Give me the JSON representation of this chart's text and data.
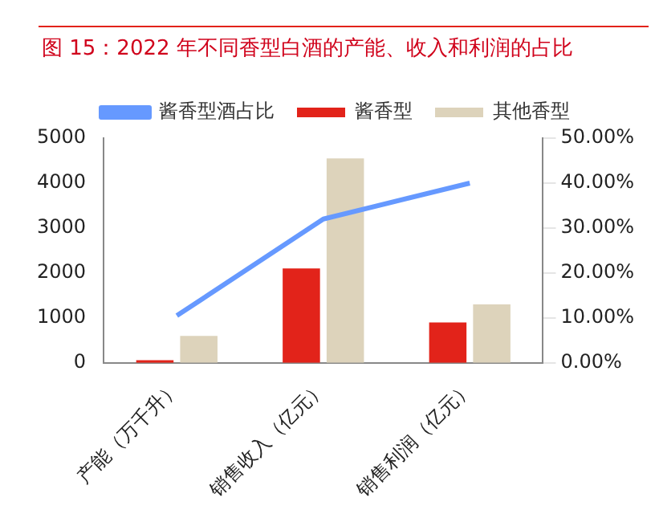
{
  "chart_data": {
    "type": "bar",
    "title": "图 15：2022 年不同香型白酒的产能、收入和利润的占比",
    "categories": [
      "产能（万千升）",
      "销售收入（亿元）",
      "销售利润（亿元）"
    ],
    "series": [
      {
        "name": "酱香型",
        "color": "#e2231a",
        "values": [
          60,
          2100,
          900
        ]
      },
      {
        "name": "其他香型",
        "color": "#ddd3bb",
        "values": [
          600,
          4550,
          1300
        ]
      },
      {
        "name": "酱香型酒占比",
        "type": "line",
        "axis": "y2",
        "color": "#6699ff",
        "values": [
          10.5,
          32,
          40
        ]
      }
    ],
    "ylim": [
      0,
      5000
    ],
    "yticks": [
      0,
      1000,
      2000,
      3000,
      4000,
      5000
    ],
    "y2lim": [
      0,
      50
    ],
    "y2ticks": [
      {
        "value": 0,
        "label": "0.00%"
      },
      {
        "value": 10,
        "label": "10.00%"
      },
      {
        "value": 20,
        "label": "20.00%"
      },
      {
        "value": 30,
        "label": "30.00%"
      },
      {
        "value": 40,
        "label": "40.00%"
      },
      {
        "value": 50,
        "label": "50.00%"
      }
    ],
    "legend": "top",
    "grid": false,
    "marker": "none"
  }
}
